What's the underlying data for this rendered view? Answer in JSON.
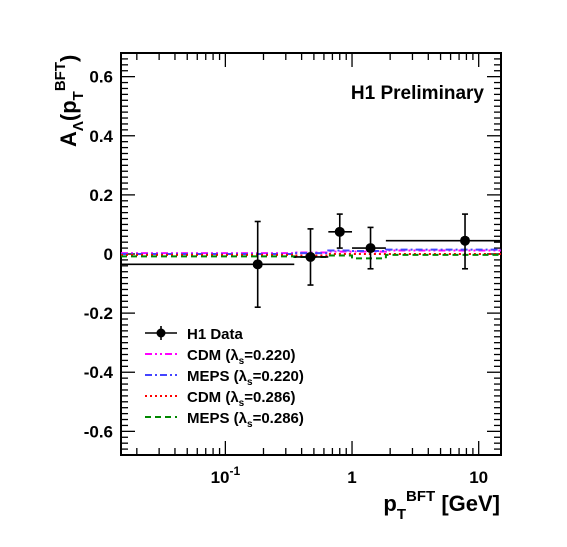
{
  "chart_data": {
    "type": "scatter",
    "title": "H1 Preliminary",
    "xlabel": {
      "main": "p",
      "sub": "T",
      "sup": "BFT",
      "unit": "[GeV]"
    },
    "ylabel": {
      "main": "A",
      "sub": "Λ",
      "arg_main": "(p",
      "arg_sub": "T",
      "arg_sup": "BFT",
      "close": ")"
    },
    "x_scale": "log",
    "xlim": [
      0.015,
      15
    ],
    "ylim": [
      -0.68,
      0.68
    ],
    "x_ticks": [
      {
        "value": 0.1,
        "base": "10",
        "exp": "-1"
      },
      {
        "value": 1,
        "base": "1",
        "exp": ""
      },
      {
        "value": 10,
        "base": "10",
        "exp": ""
      }
    ],
    "y_ticks": [
      {
        "value": 0.6,
        "label": "0.6"
      },
      {
        "value": 0.4,
        "label": "0.4"
      },
      {
        "value": 0.2,
        "label": "0.2"
      },
      {
        "value": 0,
        "label": "0"
      },
      {
        "value": -0.2,
        "label": "-0.2"
      },
      {
        "value": -0.4,
        "label": "-0.4"
      },
      {
        "value": -0.6,
        "label": "-0.6"
      }
    ],
    "data_series": {
      "name": "H1 Data",
      "points": [
        {
          "x": 0.18,
          "y": -0.035,
          "xlo": 0.015,
          "xhi": 0.35,
          "ylo": -0.18,
          "yhi": 0.11
        },
        {
          "x": 0.47,
          "y": -0.01,
          "xlo": 0.35,
          "xhi": 0.65,
          "ylo": -0.105,
          "yhi": 0.085
        },
        {
          "x": 0.8,
          "y": 0.075,
          "xlo": 0.65,
          "xhi": 1.0,
          "ylo": 0.02,
          "yhi": 0.135
        },
        {
          "x": 1.4,
          "y": 0.02,
          "xlo": 1.0,
          "xhi": 1.85,
          "ylo": -0.05,
          "yhi": 0.09
        },
        {
          "x": 7.8,
          "y": 0.045,
          "xlo": 1.85,
          "xhi": 15,
          "ylo": -0.05,
          "yhi": 0.135
        }
      ]
    },
    "model_series": [
      {
        "name": "CDM",
        "lambda": "0.220",
        "color": "#ff00ff",
        "dash": "7,3,2,3,2,3",
        "bins": [
          {
            "xlo": 0.015,
            "xhi": 0.35,
            "y": 0.003
          },
          {
            "xlo": 0.35,
            "xhi": 0.65,
            "y": 0.005
          },
          {
            "xlo": 0.65,
            "xhi": 1.0,
            "y": 0.008
          },
          {
            "xlo": 1.0,
            "xhi": 1.85,
            "y": 0.008
          },
          {
            "xlo": 1.85,
            "xhi": 15,
            "y": 0.012
          }
        ]
      },
      {
        "name": "MEPS",
        "lambda": "0.220",
        "color": "#4444ff",
        "dash": "7,3,2,3",
        "bins": [
          {
            "xlo": 0.015,
            "xhi": 0.35,
            "y": 0.0
          },
          {
            "xlo": 0.35,
            "xhi": 0.65,
            "y": 0.003
          },
          {
            "xlo": 0.65,
            "xhi": 1.0,
            "y": 0.012
          },
          {
            "xlo": 1.0,
            "xhi": 1.85,
            "y": 0.01
          },
          {
            "xlo": 1.85,
            "xhi": 15,
            "y": 0.015
          }
        ]
      },
      {
        "name": "CDM",
        "lambda": "0.286",
        "color": "#ff0000",
        "dash": "2,3",
        "bins": [
          {
            "xlo": 0.015,
            "xhi": 0.35,
            "y": -0.003
          },
          {
            "xlo": 0.35,
            "xhi": 0.65,
            "y": -0.005
          },
          {
            "xlo": 0.65,
            "xhi": 1.0,
            "y": 0.0
          },
          {
            "xlo": 1.0,
            "xhi": 1.85,
            "y": 0.0
          },
          {
            "xlo": 1.85,
            "xhi": 15,
            "y": 0.0
          }
        ]
      },
      {
        "name": "MEPS",
        "lambda": "0.286",
        "color": "#008800",
        "dash": "6,4",
        "bins": [
          {
            "xlo": 0.015,
            "xhi": 0.35,
            "y": -0.008
          },
          {
            "xlo": 0.35,
            "xhi": 0.65,
            "y": -0.01
          },
          {
            "xlo": 0.65,
            "xhi": 1.0,
            "y": -0.005
          },
          {
            "xlo": 1.0,
            "xhi": 1.85,
            "y": -0.015
          },
          {
            "xlo": 1.85,
            "xhi": 15,
            "y": -0.003
          }
        ]
      }
    ],
    "legend": {
      "position": "bottom-left",
      "lambda_sym": "λ",
      "lambda_sub": "s"
    },
    "grid": false
  }
}
